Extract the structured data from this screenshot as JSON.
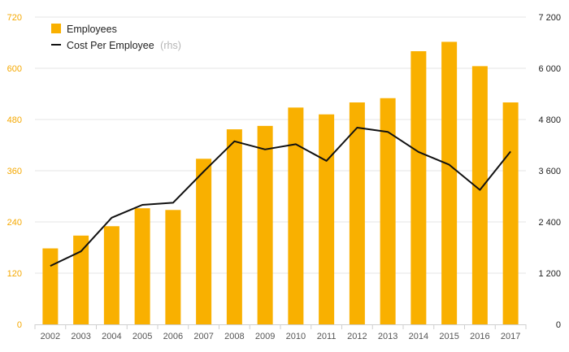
{
  "chart_data": {
    "type": "bar",
    "title": "",
    "xlabel": "",
    "ylabel": "",
    "categories": [
      "2002",
      "2003",
      "2004",
      "2005",
      "2006",
      "2007",
      "2008",
      "2009",
      "2010",
      "2011",
      "2012",
      "2013",
      "2014",
      "2015",
      "2016",
      "2017"
    ],
    "series": [
      {
        "name": "Employees",
        "type": "bar",
        "axis": "left",
        "color": "#f9b000",
        "values": [
          178,
          208,
          230,
          272,
          268,
          388,
          457,
          465,
          508,
          492,
          520,
          530,
          640,
          662,
          605,
          520
        ]
      },
      {
        "name": "Cost Per Employee",
        "note": "(rhs)",
        "type": "line",
        "axis": "right",
        "color": "#111111",
        "values": [
          1370,
          1710,
          2500,
          2800,
          2850,
          3580,
          4290,
          4100,
          4220,
          3830,
          4610,
          4510,
          4040,
          3740,
          3150,
          4050
        ]
      }
    ],
    "ylim_left": [
      0,
      720
    ],
    "yticks_left": [
      0,
      120,
      240,
      360,
      480,
      600,
      720
    ],
    "ytick_labels_left": [
      "0",
      "120",
      "240",
      "360",
      "480",
      "600",
      "720"
    ],
    "ylim_right": [
      0,
      7200
    ],
    "yticks_right": [
      0,
      1200,
      2400,
      3600,
      4800,
      6000,
      7200
    ],
    "ytick_labels_right": [
      "0",
      "1 200",
      "2 400",
      "3 600",
      "4 800",
      "6 000",
      "7 200"
    ],
    "grid": true,
    "legend_position": "top-left"
  }
}
